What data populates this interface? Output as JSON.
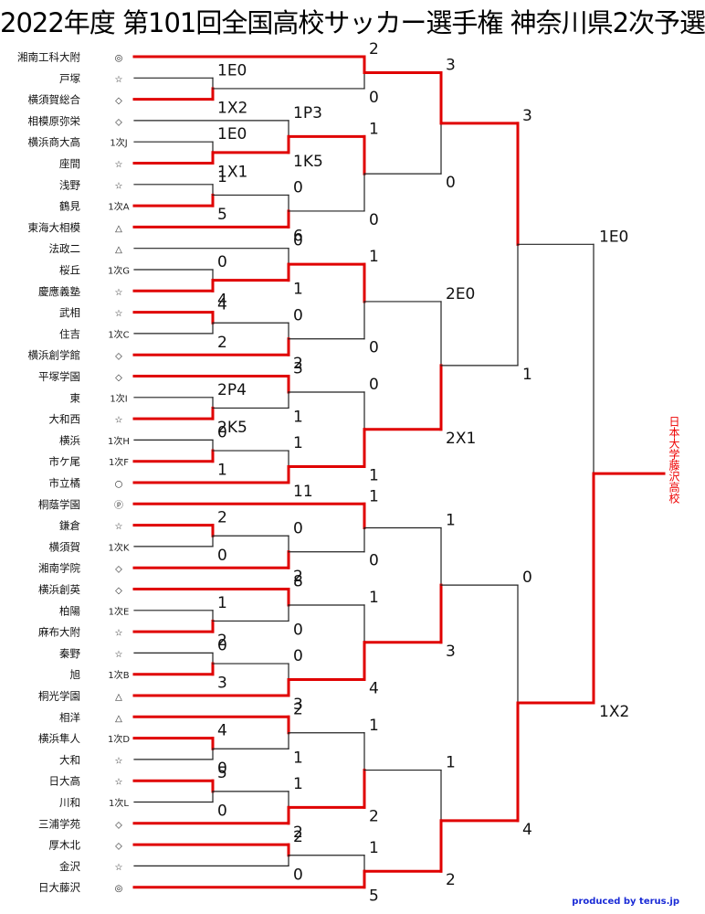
{
  "title": "2022年度 第101回全国高校サッカー選手権 神奈川県2次予選",
  "credit": "produced by terus.jp",
  "winner_label": "日本大学藤沢高校",
  "colors": {
    "win": "#e00000",
    "lose": "#222222"
  },
  "teams": [
    {
      "name": "湘南工科大附",
      "mark": "◎"
    },
    {
      "name": "戸塚",
      "mark": "☆"
    },
    {
      "name": "横須賀総合",
      "mark": "◇"
    },
    {
      "name": "相模原弥栄",
      "mark": "◇"
    },
    {
      "name": "横浜商大高",
      "mark": "1次J"
    },
    {
      "name": "座間",
      "mark": "☆"
    },
    {
      "name": "浅野",
      "mark": "☆"
    },
    {
      "name": "鶴見",
      "mark": "1次A"
    },
    {
      "name": "東海大相模",
      "mark": "△"
    },
    {
      "name": "法政二",
      "mark": "△"
    },
    {
      "name": "桜丘",
      "mark": "1次G"
    },
    {
      "name": "慶應義塾",
      "mark": "☆"
    },
    {
      "name": "武相",
      "mark": "☆"
    },
    {
      "name": "住吉",
      "mark": "1次C"
    },
    {
      "name": "横浜創学館",
      "mark": "◇"
    },
    {
      "name": "平塚学園",
      "mark": "◇"
    },
    {
      "name": "東",
      "mark": "1次I"
    },
    {
      "name": "大和西",
      "mark": "☆"
    },
    {
      "name": "横浜",
      "mark": "1次H"
    },
    {
      "name": "市ケ尾",
      "mark": "1次F"
    },
    {
      "name": "市立橘",
      "mark": "○"
    },
    {
      "name": "桐蔭学園",
      "mark": "ⓟ"
    },
    {
      "name": "鎌倉",
      "mark": "☆"
    },
    {
      "name": "横須賀",
      "mark": "1次K"
    },
    {
      "name": "湘南学院",
      "mark": "◇"
    },
    {
      "name": "横浜創英",
      "mark": "◇"
    },
    {
      "name": "柏陽",
      "mark": "1次E"
    },
    {
      "name": "麻布大附",
      "mark": "☆"
    },
    {
      "name": "秦野",
      "mark": "☆"
    },
    {
      "name": "旭",
      "mark": "1次B"
    },
    {
      "name": "桐光学園",
      "mark": "△"
    },
    {
      "name": "相洋",
      "mark": "△"
    },
    {
      "name": "横浜隼人",
      "mark": "1次D"
    },
    {
      "name": "大和",
      "mark": "☆"
    },
    {
      "name": "日大高",
      "mark": "☆"
    },
    {
      "name": "川和",
      "mark": "1次L"
    },
    {
      "name": "三浦学苑",
      "mark": "◇"
    },
    {
      "name": "厚木北",
      "mark": "◇"
    },
    {
      "name": "金沢",
      "mark": "☆"
    },
    {
      "name": "日大藤沢",
      "mark": "◎"
    }
  ],
  "matches": [
    {
      "id": "m1",
      "a": {
        "team": 1
      },
      "b": {
        "team": 2
      },
      "sa": "1E0",
      "sb": "1X2",
      "w": "b"
    },
    {
      "id": "m2",
      "a": {
        "team": 4
      },
      "b": {
        "team": 5
      },
      "sa": "1E0",
      "sb": "1X1",
      "w": "b"
    },
    {
      "id": "m3",
      "a": {
        "team": 6
      },
      "b": {
        "team": 7
      },
      "sa": "1",
      "sb": "5",
      "w": "b"
    },
    {
      "id": "m4",
      "a": {
        "team": 10
      },
      "b": {
        "team": 11
      },
      "sa": "0",
      "sb": "4",
      "w": "b"
    },
    {
      "id": "m5",
      "a": {
        "team": 12
      },
      "b": {
        "team": 13
      },
      "sa": "4",
      "sb": "2",
      "w": "a"
    },
    {
      "id": "m6",
      "a": {
        "team": 16
      },
      "b": {
        "team": 17
      },
      "sa": "2P4",
      "sb": "2K5",
      "w": "b"
    },
    {
      "id": "m7",
      "a": {
        "team": 18
      },
      "b": {
        "team": 19
      },
      "sa": "0",
      "sb": "1",
      "w": "b"
    },
    {
      "id": "m8",
      "a": {
        "team": 22
      },
      "b": {
        "team": 23
      },
      "sa": "2",
      "sb": "0",
      "w": "a"
    },
    {
      "id": "m9",
      "a": {
        "team": 26
      },
      "b": {
        "team": 27
      },
      "sa": "1",
      "sb": "2",
      "w": "b"
    },
    {
      "id": "m10",
      "a": {
        "team": 28
      },
      "b": {
        "team": 29
      },
      "sa": "0",
      "sb": "3",
      "w": "b"
    },
    {
      "id": "m11",
      "a": {
        "team": 32
      },
      "b": {
        "team": 33
      },
      "sa": "4",
      "sb": "0",
      "w": "a"
    },
    {
      "id": "m12",
      "a": {
        "team": 34
      },
      "b": {
        "team": 35
      },
      "sa": "5",
      "sb": "0",
      "w": "a"
    },
    {
      "id": "n1",
      "a": {
        "team": 3
      },
      "b": {
        "match": "m2"
      },
      "sa": "1P3",
      "sb": "1K5",
      "w": "b"
    },
    {
      "id": "n2",
      "a": {
        "match": "m3"
      },
      "b": {
        "team": 8
      },
      "sa": "0",
      "sb": "6",
      "w": "b"
    },
    {
      "id": "n3",
      "a": {
        "team": 9
      },
      "b": {
        "match": "m4"
      },
      "sa": "0",
      "sb": "1",
      "w": "b"
    },
    {
      "id": "n4",
      "a": {
        "match": "m5"
      },
      "b": {
        "team": 14
      },
      "sa": "0",
      "sb": "2",
      "w": "b"
    },
    {
      "id": "n5",
      "a": {
        "team": 15
      },
      "b": {
        "match": "m6"
      },
      "sa": "3",
      "sb": "1",
      "w": "a"
    },
    {
      "id": "n6",
      "a": {
        "match": "m7"
      },
      "b": {
        "team": 20
      },
      "sa": "1",
      "sb": "11",
      "w": "b"
    },
    {
      "id": "n7",
      "a": {
        "match": "m8"
      },
      "b": {
        "team": 24
      },
      "sa": "0",
      "sb": "2",
      "w": "b"
    },
    {
      "id": "n8",
      "a": {
        "team": 25
      },
      "b": {
        "match": "m9"
      },
      "sa": "8",
      "sb": "0",
      "w": "a"
    },
    {
      "id": "n9",
      "a": {
        "match": "m10"
      },
      "b": {
        "team": 30
      },
      "sa": "0",
      "sb": "3",
      "w": "b"
    },
    {
      "id": "n10",
      "a": {
        "team": 31
      },
      "b": {
        "match": "m11"
      },
      "sa": "2",
      "sb": "1",
      "w": "a"
    },
    {
      "id": "n11",
      "a": {
        "match": "m12"
      },
      "b": {
        "team": 36
      },
      "sa": "1",
      "sb": "2",
      "w": "b"
    },
    {
      "id": "n12",
      "a": {
        "team": 37
      },
      "b": {
        "team": 38
      },
      "sa": "2",
      "sb": "0",
      "w": "a"
    },
    {
      "id": "p1",
      "a": {
        "team": 0
      },
      "b": {
        "match": "m1"
      },
      "sa": "2",
      "sb": "0",
      "w": "a"
    },
    {
      "id": "p2",
      "a": {
        "match": "n1"
      },
      "b": {
        "match": "n2"
      },
      "sa": "1",
      "sb": "0",
      "w": "a"
    },
    {
      "id": "p3",
      "a": {
        "match": "n3"
      },
      "b": {
        "match": "n4"
      },
      "sa": "1",
      "sb": "0",
      "w": "a"
    },
    {
      "id": "p4",
      "a": {
        "match": "n5"
      },
      "b": {
        "match": "n6"
      },
      "sa": "0",
      "sb": "1",
      "w": "b"
    },
    {
      "id": "p5",
      "a": {
        "team": 21
      },
      "b": {
        "match": "n7"
      },
      "sa": "1",
      "sb": "0",
      "w": "a"
    },
    {
      "id": "p6",
      "a": {
        "match": "n8"
      },
      "b": {
        "match": "n9"
      },
      "sa": "1",
      "sb": "4",
      "w": "b"
    },
    {
      "id": "p7",
      "a": {
        "match": "n10"
      },
      "b": {
        "match": "n11"
      },
      "sa": "1",
      "sb": "2",
      "w": "b"
    },
    {
      "id": "p8",
      "a": {
        "match": "n12"
      },
      "b": {
        "team": 39
      },
      "sa": "1",
      "sb": "5",
      "w": "b"
    },
    {
      "id": "q1",
      "a": {
        "match": "p1"
      },
      "b": {
        "match": "p2"
      },
      "sa": "3",
      "sb": "0",
      "w": "a"
    },
    {
      "id": "q2",
      "a": {
        "match": "p3"
      },
      "b": {
        "match": "p4"
      },
      "sa": "2E0",
      "sb": "2X1",
      "w": "b"
    },
    {
      "id": "q3",
      "a": {
        "match": "p5"
      },
      "b": {
        "match": "p6"
      },
      "sa": "1",
      "sb": "3",
      "w": "b"
    },
    {
      "id": "q4",
      "a": {
        "match": "p7"
      },
      "b": {
        "match": "p8"
      },
      "sa": "1",
      "sb": "2",
      "w": "b"
    },
    {
      "id": "r1",
      "a": {
        "match": "q1"
      },
      "b": {
        "match": "q2"
      },
      "sa": "3",
      "sb": "1",
      "w": "a"
    },
    {
      "id": "r2",
      "a": {
        "match": "q3"
      },
      "b": {
        "match": "q4"
      },
      "sa": "0",
      "sb": "4",
      "w": "b"
    },
    {
      "id": "final",
      "a": {
        "match": "r1"
      },
      "b": {
        "match": "r2"
      },
      "sa": "1E0",
      "sb": "1X2",
      "w": "b"
    }
  ]
}
